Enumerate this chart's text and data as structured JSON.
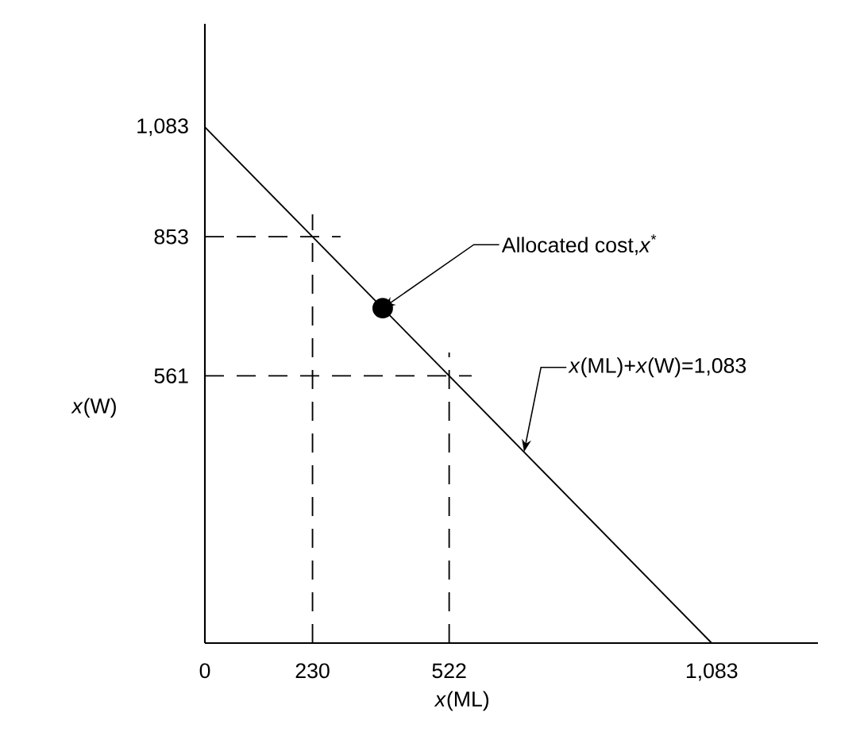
{
  "chart_data": {
    "type": "line",
    "xlabel": "*x*(ML)",
    "ylabel": "*x*(W)",
    "xlim": [
      0,
      1310
    ],
    "ylim": [
      0,
      1300
    ],
    "xticks": [
      0,
      230,
      522,
      {
        "value": 1083,
        "label": "1,083"
      }
    ],
    "yticks": [
      561,
      853,
      {
        "value": 1083,
        "label": "1,083"
      }
    ],
    "series": [
      {
        "color": "#000000",
        "line_style": "solid",
        "marker": "none",
        "x": [
          0,
          1083
        ],
        "values": [
          1083,
          0
        ]
      },
      {
        "color": "#000000",
        "line_style": "dashed",
        "marker": "none",
        "x": [
          230,
          230
        ],
        "values": [
          0,
          900
        ]
      },
      {
        "color": "#000000",
        "line_style": "dashed",
        "marker": "none",
        "x": [
          522,
          522
        ],
        "values": [
          0,
          610
        ]
      },
      {
        "color": "#000000",
        "line_style": "dashed",
        "marker": "none",
        "x": [
          0,
          290
        ],
        "values": [
          853,
          853
        ]
      },
      {
        "color": "#000000",
        "line_style": "dashed",
        "marker": "none",
        "x": [
          0,
          570
        ],
        "values": [
          561,
          561
        ]
      },
      {
        "type": "scatter",
        "color": "#000000",
        "marker": "circle",
        "x": [
          380
        ],
        "values": [
          703
        ]
      }
    ],
    "annotations": [
      {
        "text": "Allocated cost,*x*$^{*}$",
        "x": 380,
        "y": 703
      },
      {
        "text": "*x*(ML)+*x*(W)=1,083",
        "x": 682,
        "y": 401
      }
    ]
  }
}
